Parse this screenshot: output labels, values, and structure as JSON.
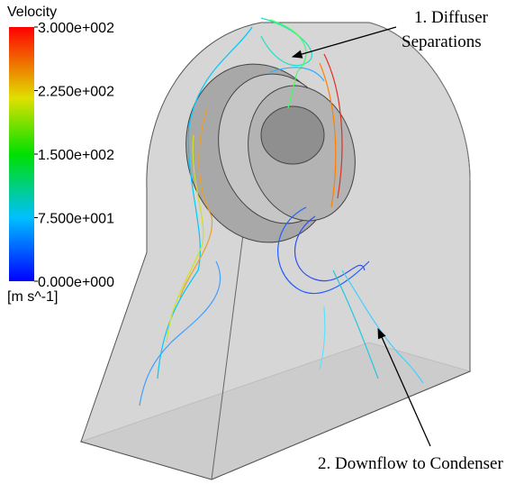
{
  "legend": {
    "title": "Velocity",
    "unit": "[m s^-1]",
    "range": [
      0,
      300
    ],
    "ticks": [
      {
        "value": 300,
        "label": "3.000e+002"
      },
      {
        "value": 225,
        "label": "2.250e+002"
      },
      {
        "value": 150,
        "label": "1.500e+002"
      },
      {
        "value": 75,
        "label": "7.500e+001"
      },
      {
        "value": 0,
        "label": "0.000e+000"
      }
    ]
  },
  "annotations": [
    {
      "lines": [
        "1. Diffuser",
        "Separations"
      ]
    },
    {
      "text": "2. Downflow to Condenser"
    }
  ]
}
